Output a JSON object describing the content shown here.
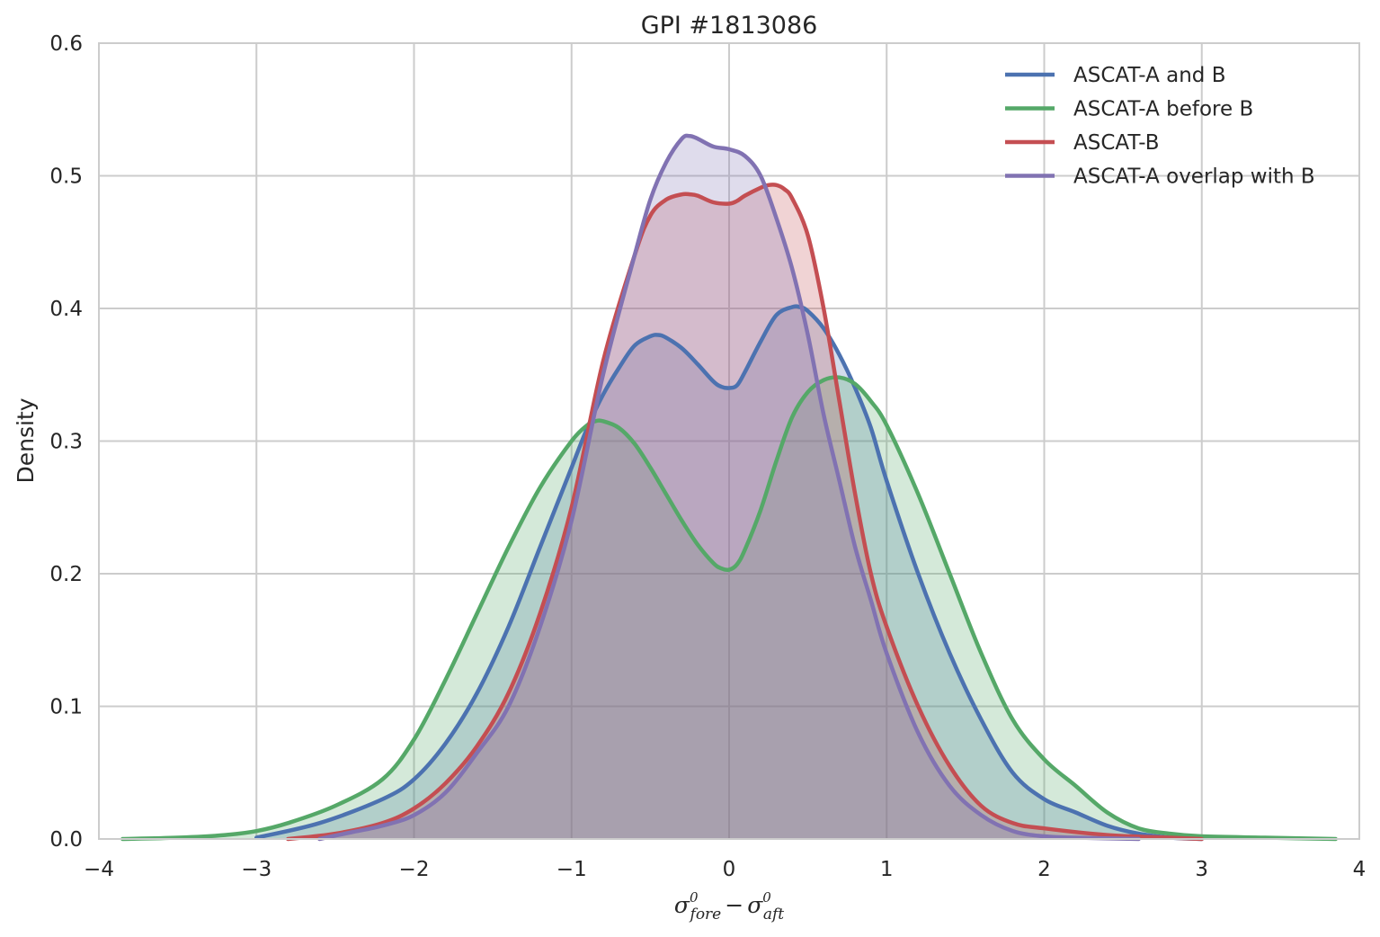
{
  "chart_data": {
    "type": "area",
    "title": "GPI #1813086",
    "ylabel": "Density",
    "xlabel": {
      "sym": "σ",
      "sup": "0",
      "sub1": "fore",
      "minus": "−",
      "sub2": "aft"
    },
    "xlim": [
      -4,
      4
    ],
    "ylim": [
      0,
      0.6
    ],
    "x_ticks": [
      -4,
      -3,
      -2,
      -1,
      0,
      1,
      2,
      3,
      4
    ],
    "x_tick_labels": [
      "−4",
      "−3",
      "−2",
      "−1",
      "0",
      "1",
      "2",
      "3",
      "4"
    ],
    "y_ticks": [
      0.0,
      0.1,
      0.2,
      0.3,
      0.4,
      0.5,
      0.6
    ],
    "y_tick_labels": [
      "0.0",
      "0.1",
      "0.2",
      "0.3",
      "0.4",
      "0.5",
      "0.6"
    ],
    "grid": true,
    "legend_position": "top-right",
    "series": [
      {
        "name": "ASCAT-A and B",
        "color": "#4c72b0",
        "fill": true,
        "x": [
          -3.0,
          -2.6,
          -2.2,
          -2.0,
          -1.8,
          -1.6,
          -1.4,
          -1.2,
          -1.0,
          -0.9,
          -0.8,
          -0.7,
          -0.6,
          -0.5,
          -0.45,
          -0.4,
          -0.3,
          -0.2,
          -0.1,
          -0.05,
          0.0,
          0.05,
          0.1,
          0.2,
          0.3,
          0.4,
          0.45,
          0.5,
          0.6,
          0.7,
          0.8,
          0.9,
          1.0,
          1.2,
          1.4,
          1.6,
          1.8,
          2.0,
          2.2,
          2.4,
          2.6,
          2.8,
          3.0
        ],
        "y": [
          0.001,
          0.012,
          0.03,
          0.045,
          0.072,
          0.11,
          0.16,
          0.22,
          0.28,
          0.31,
          0.335,
          0.355,
          0.372,
          0.379,
          0.38,
          0.378,
          0.37,
          0.358,
          0.345,
          0.341,
          0.34,
          0.342,
          0.352,
          0.375,
          0.395,
          0.401,
          0.401,
          0.398,
          0.385,
          0.365,
          0.34,
          0.31,
          0.27,
          0.2,
          0.14,
          0.09,
          0.05,
          0.03,
          0.02,
          0.01,
          0.004,
          0.001,
          0.0
        ]
      },
      {
        "name": "ASCAT-A before B",
        "color": "#55a868",
        "fill": true,
        "x": [
          -3.85,
          -3.5,
          -3.2,
          -3.0,
          -2.8,
          -2.5,
          -2.2,
          -2.0,
          -1.8,
          -1.6,
          -1.4,
          -1.2,
          -1.0,
          -0.9,
          -0.85,
          -0.8,
          -0.7,
          -0.6,
          -0.5,
          -0.4,
          -0.3,
          -0.2,
          -0.1,
          -0.05,
          0.0,
          0.05,
          0.1,
          0.2,
          0.3,
          0.4,
          0.5,
          0.6,
          0.7,
          0.8,
          0.9,
          1.0,
          1.2,
          1.4,
          1.6,
          1.8,
          2.0,
          2.2,
          2.4,
          2.6,
          2.8,
          3.0,
          3.4,
          3.85
        ],
        "y": [
          0.0,
          0.001,
          0.003,
          0.006,
          0.012,
          0.025,
          0.045,
          0.075,
          0.12,
          0.17,
          0.22,
          0.265,
          0.3,
          0.312,
          0.315,
          0.315,
          0.31,
          0.298,
          0.28,
          0.26,
          0.24,
          0.222,
          0.208,
          0.204,
          0.203,
          0.207,
          0.218,
          0.248,
          0.285,
          0.318,
          0.337,
          0.346,
          0.348,
          0.343,
          0.33,
          0.312,
          0.26,
          0.2,
          0.14,
          0.09,
          0.06,
          0.04,
          0.02,
          0.008,
          0.004,
          0.002,
          0.001,
          0.0
        ]
      },
      {
        "name": "ASCAT-B",
        "color": "#c44e52",
        "fill": true,
        "x": [
          -2.8,
          -2.5,
          -2.2,
          -2.0,
          -1.8,
          -1.6,
          -1.4,
          -1.2,
          -1.0,
          -0.8,
          -0.6,
          -0.5,
          -0.4,
          -0.3,
          -0.25,
          -0.2,
          -0.1,
          0.0,
          0.05,
          0.1,
          0.2,
          0.25,
          0.3,
          0.35,
          0.4,
          0.5,
          0.6,
          0.7,
          0.8,
          0.9,
          1.0,
          1.2,
          1.4,
          1.6,
          1.8,
          2.0,
          2.4,
          2.8,
          3.0
        ],
        "y": [
          0.0,
          0.004,
          0.012,
          0.023,
          0.042,
          0.07,
          0.11,
          0.17,
          0.25,
          0.36,
          0.44,
          0.47,
          0.482,
          0.486,
          0.486,
          0.485,
          0.48,
          0.479,
          0.481,
          0.485,
          0.491,
          0.493,
          0.493,
          0.49,
          0.483,
          0.455,
          0.4,
          0.33,
          0.26,
          0.2,
          0.16,
          0.1,
          0.055,
          0.025,
          0.012,
          0.008,
          0.003,
          0.001,
          0.0
        ]
      },
      {
        "name": "ASCAT-A overlap with B",
        "color": "#8172b2",
        "fill": true,
        "x": [
          -2.6,
          -2.4,
          -2.2,
          -2.0,
          -1.8,
          -1.6,
          -1.4,
          -1.2,
          -1.0,
          -0.8,
          -0.6,
          -0.5,
          -0.4,
          -0.3,
          -0.25,
          -0.2,
          -0.1,
          0.0,
          0.1,
          0.2,
          0.3,
          0.4,
          0.5,
          0.6,
          0.7,
          0.8,
          0.9,
          1.0,
          1.2,
          1.4,
          1.6,
          1.8,
          2.0,
          2.2,
          2.6
        ],
        "y": [
          0.0,
          0.005,
          0.01,
          0.018,
          0.035,
          0.065,
          0.1,
          0.16,
          0.24,
          0.35,
          0.44,
          0.482,
          0.51,
          0.528,
          0.53,
          0.528,
          0.522,
          0.52,
          0.515,
          0.5,
          0.468,
          0.43,
          0.38,
          0.32,
          0.27,
          0.22,
          0.18,
          0.14,
          0.08,
          0.04,
          0.018,
          0.006,
          0.002,
          0.001,
          0.0
        ]
      }
    ]
  }
}
